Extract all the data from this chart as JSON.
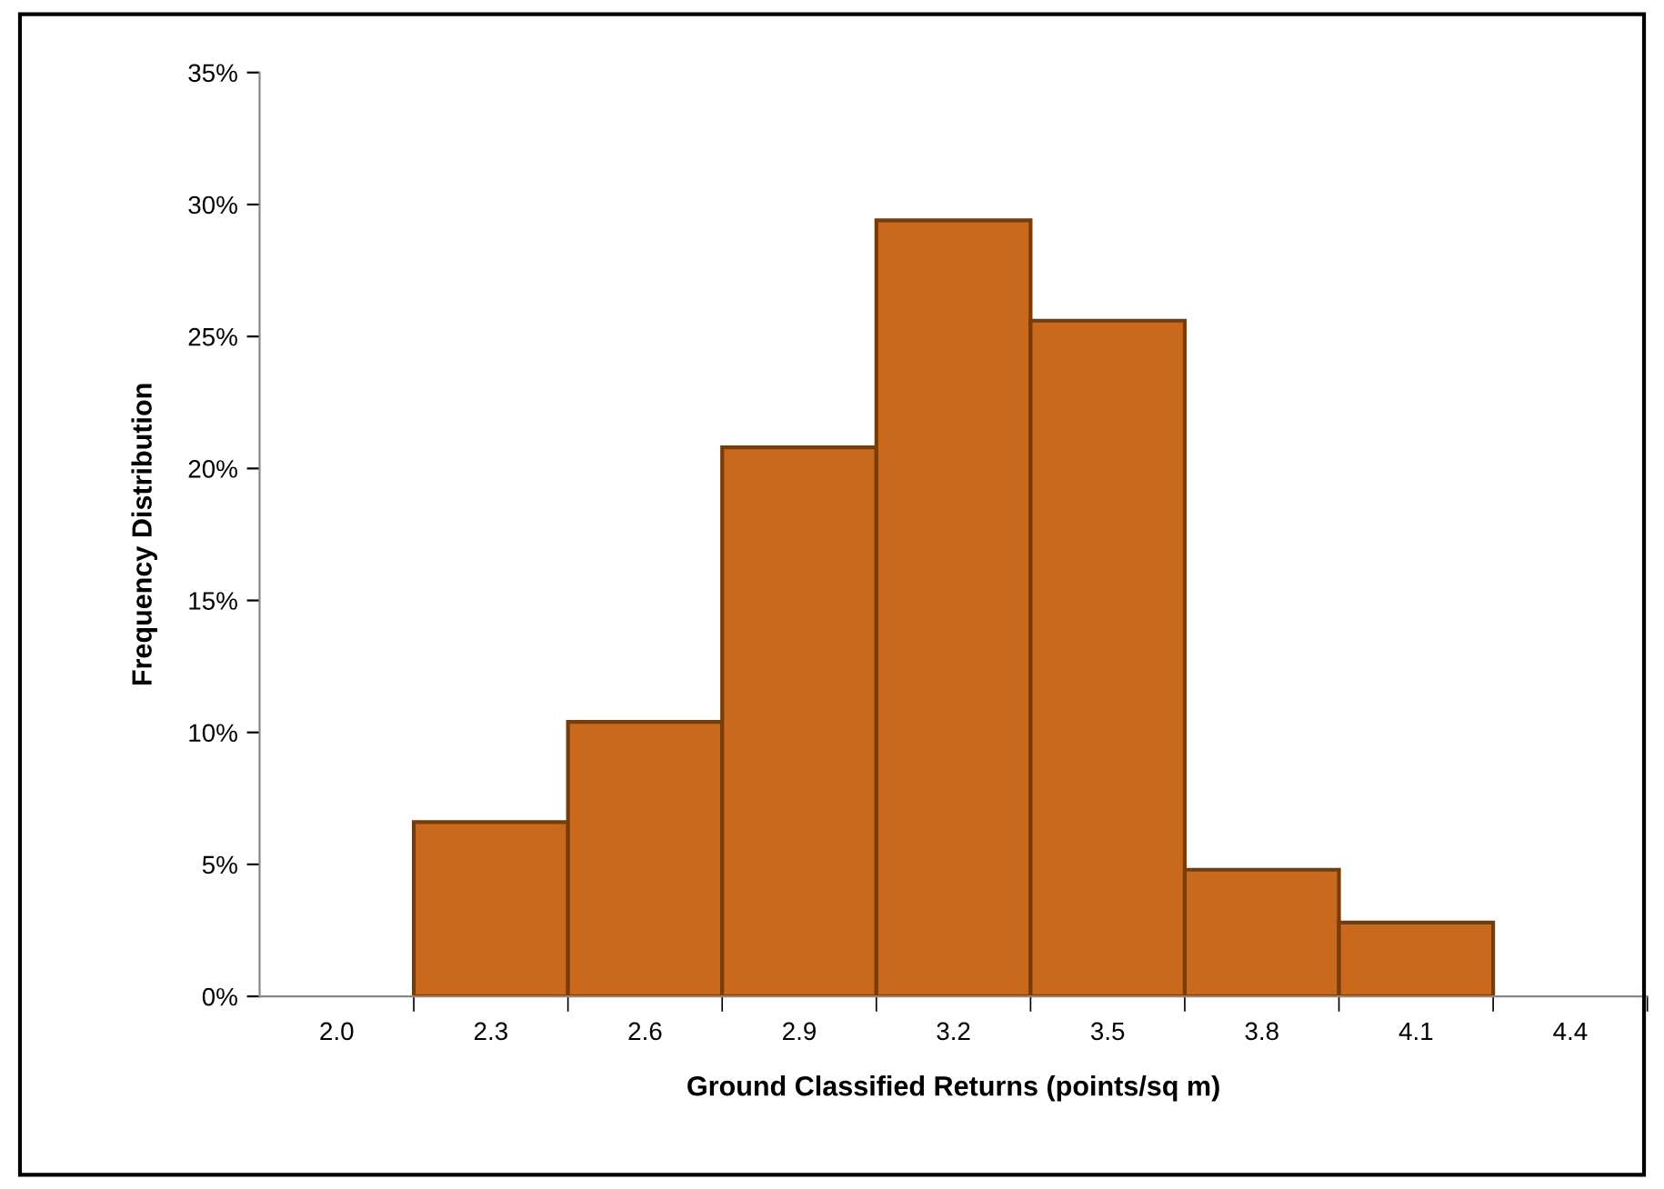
{
  "chart_data": {
    "type": "bar",
    "xlabel": "Ground Classified Returns (points/sq m)",
    "ylabel": "Frequency Distribution",
    "categories": [
      "2.0",
      "2.3",
      "2.6",
      "2.9",
      "3.2",
      "3.5",
      "3.8",
      "4.1",
      "4.4"
    ],
    "values": [
      null,
      6.6,
      10.4,
      20.8,
      29.4,
      25.6,
      4.8,
      2.8,
      null
    ],
    "color": "#c8691e",
    "ylim": [
      0,
      35
    ],
    "yticks": [
      {
        "value": 0,
        "label": "0%"
      },
      {
        "value": 5,
        "label": "5%"
      },
      {
        "value": 10,
        "label": "10%"
      },
      {
        "value": 15,
        "label": "15%"
      },
      {
        "value": 20,
        "label": "20%"
      },
      {
        "value": 25,
        "label": "25%"
      },
      {
        "value": 30,
        "label": "30%"
      },
      {
        "value": 35,
        "label": "35%"
      }
    ],
    "grid": false,
    "legend": false
  }
}
